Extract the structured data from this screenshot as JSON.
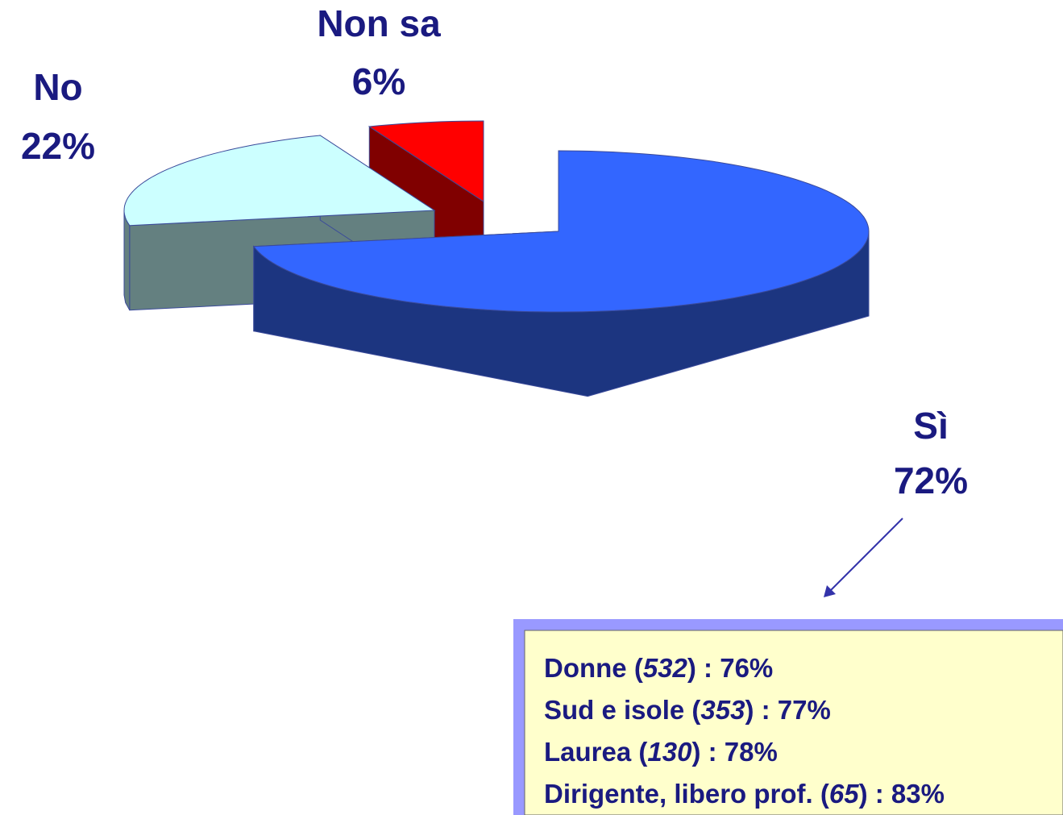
{
  "chart_data": {
    "type": "pie",
    "categories": [
      "Sì",
      "No",
      "Non sa"
    ],
    "values": [
      72,
      22,
      6
    ],
    "value_labels": [
      "72%",
      "22%",
      "6%"
    ],
    "colors": [
      "#3366ff",
      "#ccffff",
      "#ff0000"
    ],
    "side_colors": [
      "#1c3580",
      "#648080",
      "#800000"
    ],
    "annotation": {
      "lines": [
        "Donne (532) : 76%",
        "Sud e isole (353) : 77%",
        "Laurea (130) : 78%",
        "Dirigente, libero prof. (65) : 83%"
      ]
    }
  }
}
